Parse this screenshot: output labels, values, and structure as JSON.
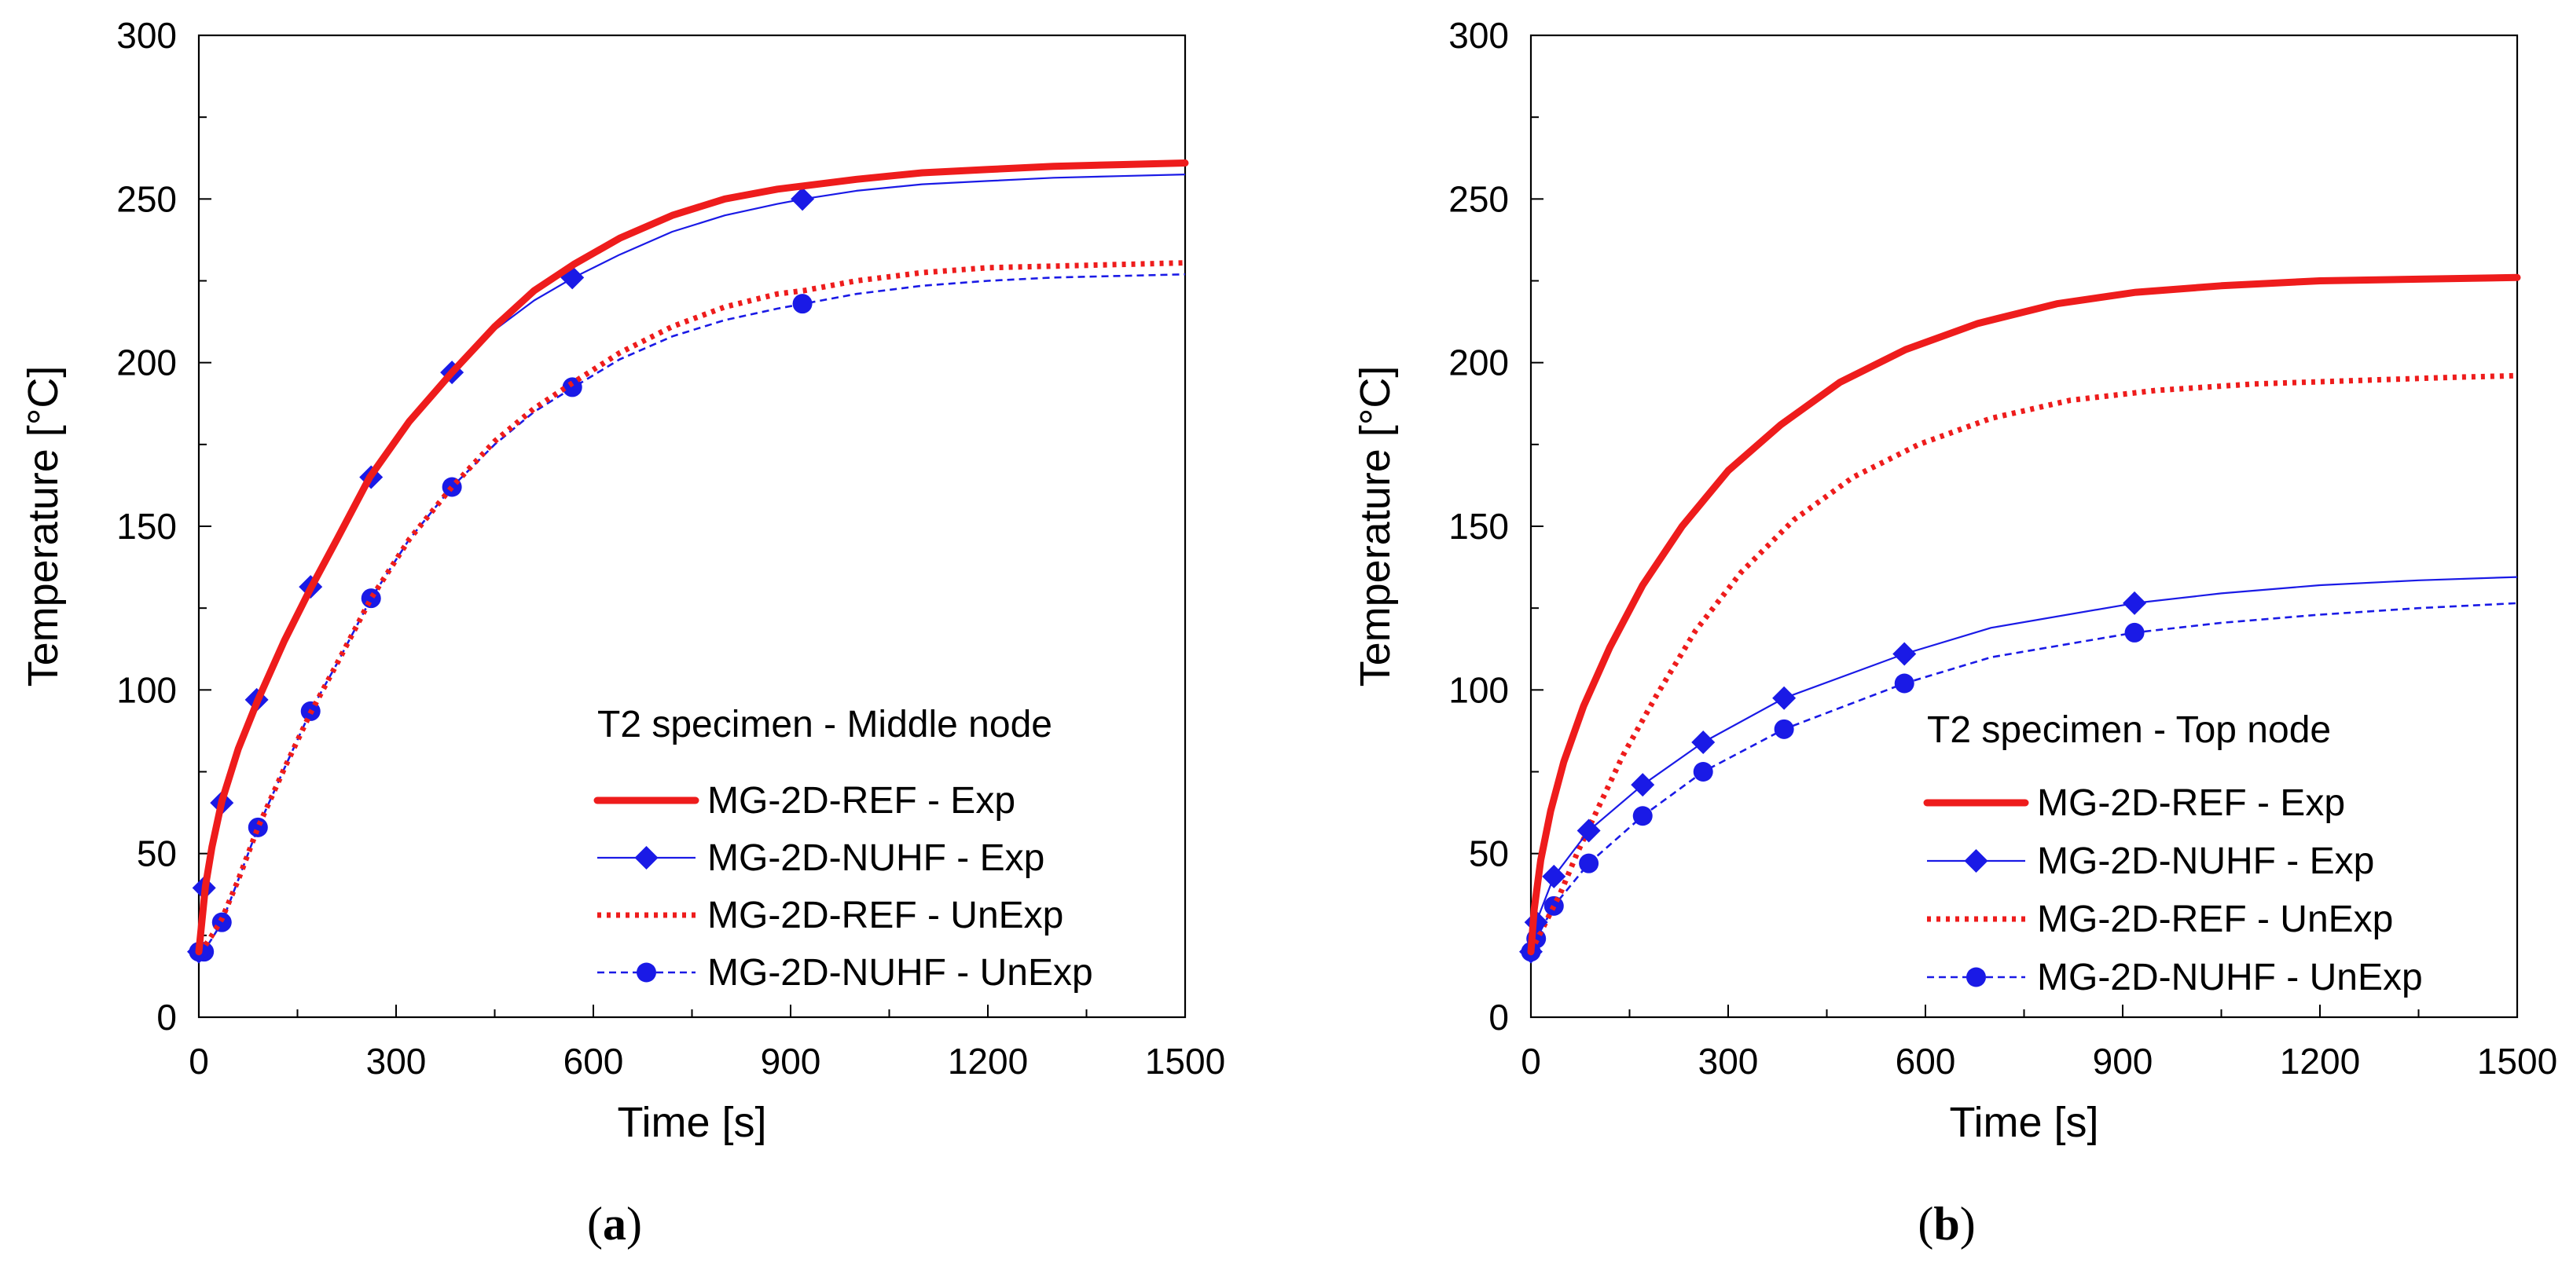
{
  "colors": {
    "red": "#ee1c1c",
    "blue": "#1a1ae6",
    "axis": "#000000"
  },
  "chart_data": [
    {
      "type": "line",
      "panel_label": "a",
      "xlabel": "Time  [s]",
      "ylabel": "Temperature  [°C]",
      "xlim": [
        0,
        1500
      ],
      "ylim": [
        0,
        300
      ],
      "xticks": [
        0,
        300,
        600,
        900,
        1200,
        1500
      ],
      "yticks": [
        0,
        50,
        100,
        150,
        200,
        250,
        300
      ],
      "legend": {
        "title": "T2 specimen - Middle node",
        "placement": "bottom-right",
        "entries": [
          "MG-2D-REF - Exp",
          "MG-2D-NUHF - Exp",
          "MG-2D-REF - UnExp",
          "MG-2D-NUHF - UnExp"
        ]
      },
      "series": [
        {
          "name": "MG-2D-REF - Exp",
          "style": "thick-solid",
          "color": "red",
          "marker": "none",
          "x": [
            0,
            10,
            20,
            35,
            60,
            90,
            130,
            170,
            210,
            260,
            320,
            385,
            450,
            510,
            570,
            640,
            720,
            800,
            880,
            920,
            1000,
            1100,
            1200,
            1300,
            1400,
            1500
          ],
          "y": [
            20,
            40,
            52,
            66,
            82,
            97,
            115,
            131,
            146,
            165,
            182,
            197,
            211,
            222,
            230,
            238,
            245,
            250,
            253,
            254,
            256,
            258,
            259,
            260,
            260.5,
            261
          ]
        },
        {
          "name": "MG-2D-NUHF - Exp",
          "style": "thin-solid",
          "color": "blue",
          "marker": "diamond",
          "x": [
            0,
            10,
            20,
            35,
            60,
            90,
            130,
            170,
            210,
            260,
            320,
            385,
            450,
            510,
            570,
            640,
            720,
            800,
            880,
            920,
            1000,
            1100,
            1200,
            1300,
            1400,
            1500
          ],
          "y": [
            20,
            39.5,
            52,
            65.5,
            82,
            97,
            115,
            131.5,
            146,
            165,
            182,
            197,
            210,
            219,
            226,
            233,
            240,
            245,
            248.5,
            250,
            252.5,
            254.5,
            255.5,
            256.5,
            257,
            257.5
          ],
          "markers_x": [
            0,
            8,
            35,
            88,
            170,
            262,
            385,
            568,
            918
          ],
          "markers_y": [
            20,
            39.5,
            65.5,
            97,
            131.5,
            165,
            197,
            226,
            250
          ]
        },
        {
          "name": "MG-2D-REF - UnExp",
          "style": "dotted",
          "color": "red",
          "marker": "none",
          "x": [
            0,
            10,
            20,
            35,
            60,
            90,
            130,
            170,
            210,
            262,
            320,
            385,
            450,
            510,
            570,
            640,
            720,
            800,
            880,
            920,
            1000,
            1100,
            1200,
            1300,
            1400,
            1500
          ],
          "y": [
            20,
            22,
            25,
            30,
            42,
            58,
            76,
            93,
            108,
            128,
            146,
            162,
            176,
            186,
            194,
            203,
            211,
            217,
            221,
            222,
            225,
            227.5,
            229,
            229.5,
            230,
            230.5
          ]
        },
        {
          "name": "MG-2D-NUHF - UnExp",
          "style": "thin-dashed",
          "color": "blue",
          "marker": "circle",
          "x": [
            0,
            10,
            20,
            35,
            60,
            90,
            130,
            170,
            210,
            262,
            320,
            385,
            450,
            510,
            570,
            640,
            720,
            800,
            880,
            920,
            1000,
            1100,
            1200,
            1300,
            1400,
            1500
          ],
          "y": [
            20,
            21,
            24,
            29,
            42,
            58,
            76,
            93.5,
            108,
            128,
            146,
            162,
            175,
            185,
            192.5,
            201,
            208,
            213,
            216.5,
            218,
            221,
            223.5,
            225,
            226,
            226.5,
            227
          ],
          "markers_x": [
            0,
            8,
            35,
            90,
            170,
            262,
            385,
            568,
            918
          ],
          "markers_y": [
            20,
            20,
            29,
            58,
            93.5,
            128,
            162,
            192.5,
            218
          ]
        }
      ]
    },
    {
      "type": "line",
      "panel_label": "b",
      "xlabel": "Time  [s]",
      "ylabel": "Temperature  [°C]",
      "xlim": [
        0,
        1500
      ],
      "ylim": [
        0,
        300
      ],
      "xticks": [
        0,
        300,
        600,
        900,
        1200,
        1500
      ],
      "yticks": [
        0,
        50,
        100,
        150,
        200,
        250,
        300
      ],
      "legend": {
        "title": "T2 specimen - Top node",
        "placement": "bottom-right",
        "entries": [
          "MG-2D-REF - Exp",
          "MG-2D-NUHF - Exp",
          "MG-2D-REF - UnExp",
          "MG-2D-NUHF - UnExp"
        ]
      },
      "series": [
        {
          "name": "MG-2D-REF - Exp",
          "style": "thick-solid",
          "color": "red",
          "marker": "none",
          "x": [
            0,
            5,
            15,
            30,
            50,
            80,
            120,
            170,
            230,
            300,
            380,
            470,
            570,
            680,
            800,
            920,
            1050,
            1200,
            1350,
            1500
          ],
          "y": [
            20,
            33,
            48,
            63,
            78,
            95,
            113,
            132,
            150,
            167,
            181,
            194,
            204,
            212,
            218,
            221.5,
            223.5,
            225,
            225.5,
            226
          ]
        },
        {
          "name": "MG-2D-NUHF - Exp",
          "style": "thin-solid",
          "color": "blue",
          "marker": "diamond",
          "x": [
            0,
            8,
            35,
            88,
            170,
            262,
            385,
            568,
            700,
            918,
            1050,
            1200,
            1350,
            1500
          ],
          "y": [
            20,
            29,
            43,
            57,
            71,
            84,
            97.5,
            111,
            119,
            126.5,
            129.5,
            132,
            133.5,
            134.5
          ],
          "markers_x": [
            0,
            8,
            35,
            88,
            170,
            262,
            385,
            568,
            918
          ],
          "markers_y": [
            20,
            29,
            43,
            57,
            71,
            84,
            97.5,
            111,
            126.5
          ]
        },
        {
          "name": "MG-2D-REF - UnExp",
          "style": "dotted",
          "color": "red",
          "marker": "none",
          "x": [
            0,
            10,
            25,
            45,
            70,
            100,
            140,
            190,
            250,
            320,
            400,
            490,
            590,
            700,
            820,
            950,
            1100,
            1250,
            1400,
            1500
          ],
          "y": [
            20,
            24,
            30,
            38,
            50,
            63,
            80,
            98,
            118,
            136,
            152,
            165,
            175,
            183,
            188.5,
            191.5,
            193.5,
            194.5,
            195.5,
            196
          ]
        },
        {
          "name": "MG-2D-NUHF - UnExp",
          "style": "thin-dashed",
          "color": "blue",
          "marker": "circle",
          "x": [
            0,
            8,
            35,
            88,
            170,
            262,
            385,
            568,
            700,
            918,
            1050,
            1200,
            1350,
            1500
          ],
          "y": [
            20,
            24,
            34,
            47,
            61.5,
            75,
            88,
            102,
            110,
            117.5,
            120.5,
            123,
            125,
            126.5
          ],
          "markers_x": [
            0,
            8,
            35,
            88,
            170,
            262,
            385,
            568,
            918
          ],
          "markers_y": [
            20,
            24,
            34,
            47,
            61.5,
            75,
            88,
            102,
            117.5
          ]
        }
      ]
    }
  ]
}
